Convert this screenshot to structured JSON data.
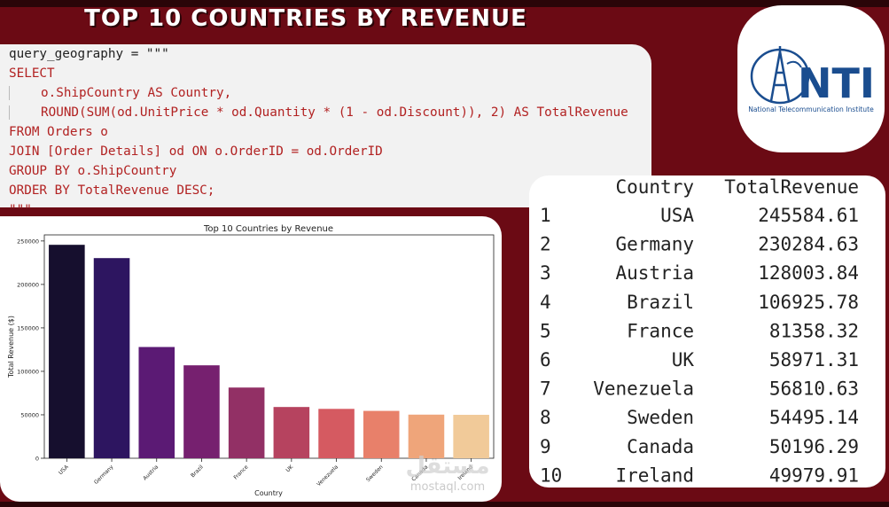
{
  "title": "TOP 10 COUNTRIES BY REVENUE",
  "code": {
    "lines": [
      "query_geography = \"\"\"",
      "SELECT",
      "o.ShipCountry AS Country,",
      "ROUND(SUM(od.UnitPrice * od.Quantity * (1 - od.Discount)), 2) AS TotalRevenue",
      "FROM Orders o",
      "JOIN [Order Details] od ON o.OrderID = od.OrderID",
      "GROUP BY o.ShipCountry",
      "ORDER BY TotalRevenue DESC;",
      "\"\"\""
    ]
  },
  "logo": {
    "name": "NTI",
    "subtitle": "National Telecommunication Institute",
    "color": "#1a4d8f"
  },
  "table": {
    "headers": [
      "Country",
      "TotalRevenue"
    ],
    "rows": [
      {
        "index": "1",
        "country": "USA",
        "revenue": "245584.61"
      },
      {
        "index": "2",
        "country": "Germany",
        "revenue": "230284.63"
      },
      {
        "index": "3",
        "country": "Austria",
        "revenue": "128003.84"
      },
      {
        "index": "4",
        "country": "Brazil",
        "revenue": "106925.78"
      },
      {
        "index": "5",
        "country": "France",
        "revenue": "81358.32"
      },
      {
        "index": "6",
        "country": "UK",
        "revenue": "58971.31"
      },
      {
        "index": "7",
        "country": "Venezuela",
        "revenue": "56810.63"
      },
      {
        "index": "8",
        "country": "Sweden",
        "revenue": "54495.14"
      },
      {
        "index": "9",
        "country": "Canada",
        "revenue": "50196.29"
      },
      {
        "index": "10",
        "country": "Ireland",
        "revenue": "49979.91"
      }
    ]
  },
  "watermark": {
    "arabic": "مستقل",
    "latin": "mostaql.com"
  },
  "chart_data": {
    "type": "bar",
    "title": "Top 10 Countries by Revenue",
    "xlabel": "Country",
    "ylabel": "Total Revenue ($)",
    "categories": [
      "USA",
      "Germany",
      "Austria",
      "Brazil",
      "France",
      "UK",
      "Venezuela",
      "Sweden",
      "Canada",
      "Ireland"
    ],
    "values": [
      245584.61,
      230284.63,
      128003.84,
      106925.78,
      81358.32,
      58971.31,
      56810.63,
      54495.14,
      50196.29,
      49979.91
    ],
    "ylim": [
      0,
      257000
    ],
    "yticks": [
      0,
      50000,
      100000,
      150000,
      200000,
      250000
    ],
    "colors": [
      "#160f2e",
      "#2d1560",
      "#5b1a74",
      "#76206f",
      "#923065",
      "#b6435f",
      "#d55a61",
      "#e8806a",
      "#efa57a",
      "#f1ca99"
    ],
    "grid": false
  }
}
